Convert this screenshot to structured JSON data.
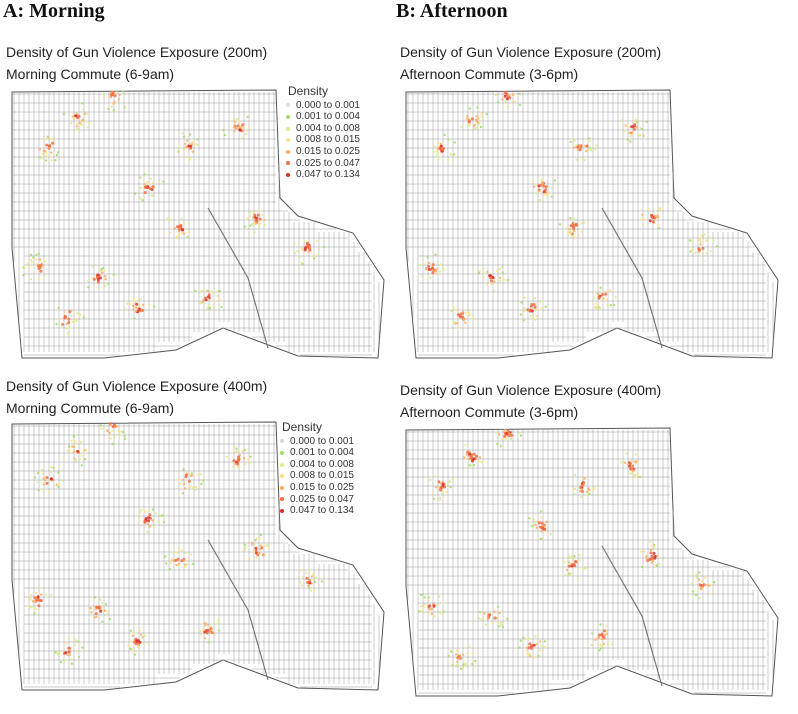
{
  "headings": {
    "a": "A: Morning",
    "b": "B: Afternoon"
  },
  "legend": {
    "title": "Density",
    "classes": [
      {
        "range": "0.000 to 0.001",
        "color": "#d9d9d9"
      },
      {
        "range": "0.001 to 0.004",
        "color": "#a6d96a"
      },
      {
        "range": "0.004 to 0.008",
        "color": "#d9ef8b"
      },
      {
        "range": "0.008 to 0.015",
        "color": "#fee08b"
      },
      {
        "range": "0.015 to 0.025",
        "color": "#fdae61"
      },
      {
        "range": "0.025 to 0.047",
        "color": "#f46d43"
      },
      {
        "range": "0.047 to 0.134",
        "color": "#d73027"
      }
    ]
  },
  "panels": [
    {
      "id": "a200",
      "title1": "Density of Gun Violence Exposure (200m)",
      "title2": "Morning Commute (6-9am)",
      "legend": true
    },
    {
      "id": "b200",
      "title1": "Density of Gun Violence Exposure (200m)",
      "title2": "Afternoon Commute (3-6pm)",
      "legend": false
    },
    {
      "id": "a400",
      "title1": "Density of Gun Violence Exposure (400m)",
      "title2": "Morning Commute (6-9am)",
      "legend": true
    },
    {
      "id": "b400",
      "title1": "Density of Gun Violence Exposure (400m)",
      "title2": "Afternoon Commute (3-6pm)",
      "legend": false
    }
  ],
  "colors": {
    "street": "#9a9a9a",
    "boundary": "#555555"
  }
}
